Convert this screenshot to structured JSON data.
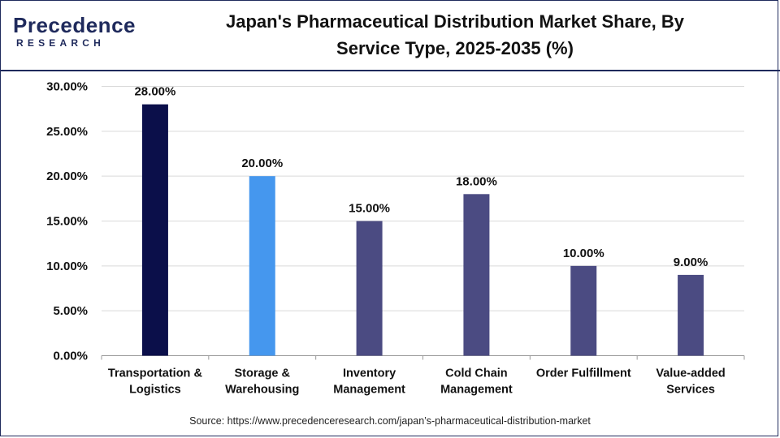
{
  "brand": {
    "name": "Precedence",
    "subtitle": "RESEARCH",
    "color": "#1f2a5c"
  },
  "chart_data": {
    "type": "bar",
    "title": "Japan's Pharmaceutical Distribution Market Share, By Service Type, 2025-2035 (%)",
    "title_lines": [
      "Japan's Pharmaceutical Distribution Market Share, By",
      "Service Type, 2025-2035 (%)"
    ],
    "categories": [
      [
        "Transportation &",
        "Logistics"
      ],
      [
        "Storage &",
        "Warehousing"
      ],
      [
        "Inventory",
        "Management"
      ],
      [
        "Cold Chain",
        "Management"
      ],
      [
        "Order Fulfillment"
      ],
      [
        "Value-added",
        "Services"
      ]
    ],
    "values": [
      28,
      20,
      15,
      18,
      10,
      9
    ],
    "data_labels": [
      "28.00%",
      "20.00%",
      "15.00%",
      "18.00%",
      "10.00%",
      "9.00%"
    ],
    "bar_colors": [
      "#0b0f4a",
      "#4597ee",
      "#4b4b82",
      "#4b4b82",
      "#4b4b82",
      "#4b4b82"
    ],
    "ylim": [
      0,
      30
    ],
    "yticks": [
      0,
      5,
      10,
      15,
      20,
      25,
      30
    ],
    "ytick_labels": [
      "0.00%",
      "5.00%",
      "10.00%",
      "15.00%",
      "20.00%",
      "25.00%",
      "30.00%"
    ],
    "xlabel": "",
    "ylabel": "",
    "grid": true,
    "legend": "none"
  },
  "source": "Source: https://www.precedenceresearch.com/japan’s-pharmaceutical-distribution-market"
}
